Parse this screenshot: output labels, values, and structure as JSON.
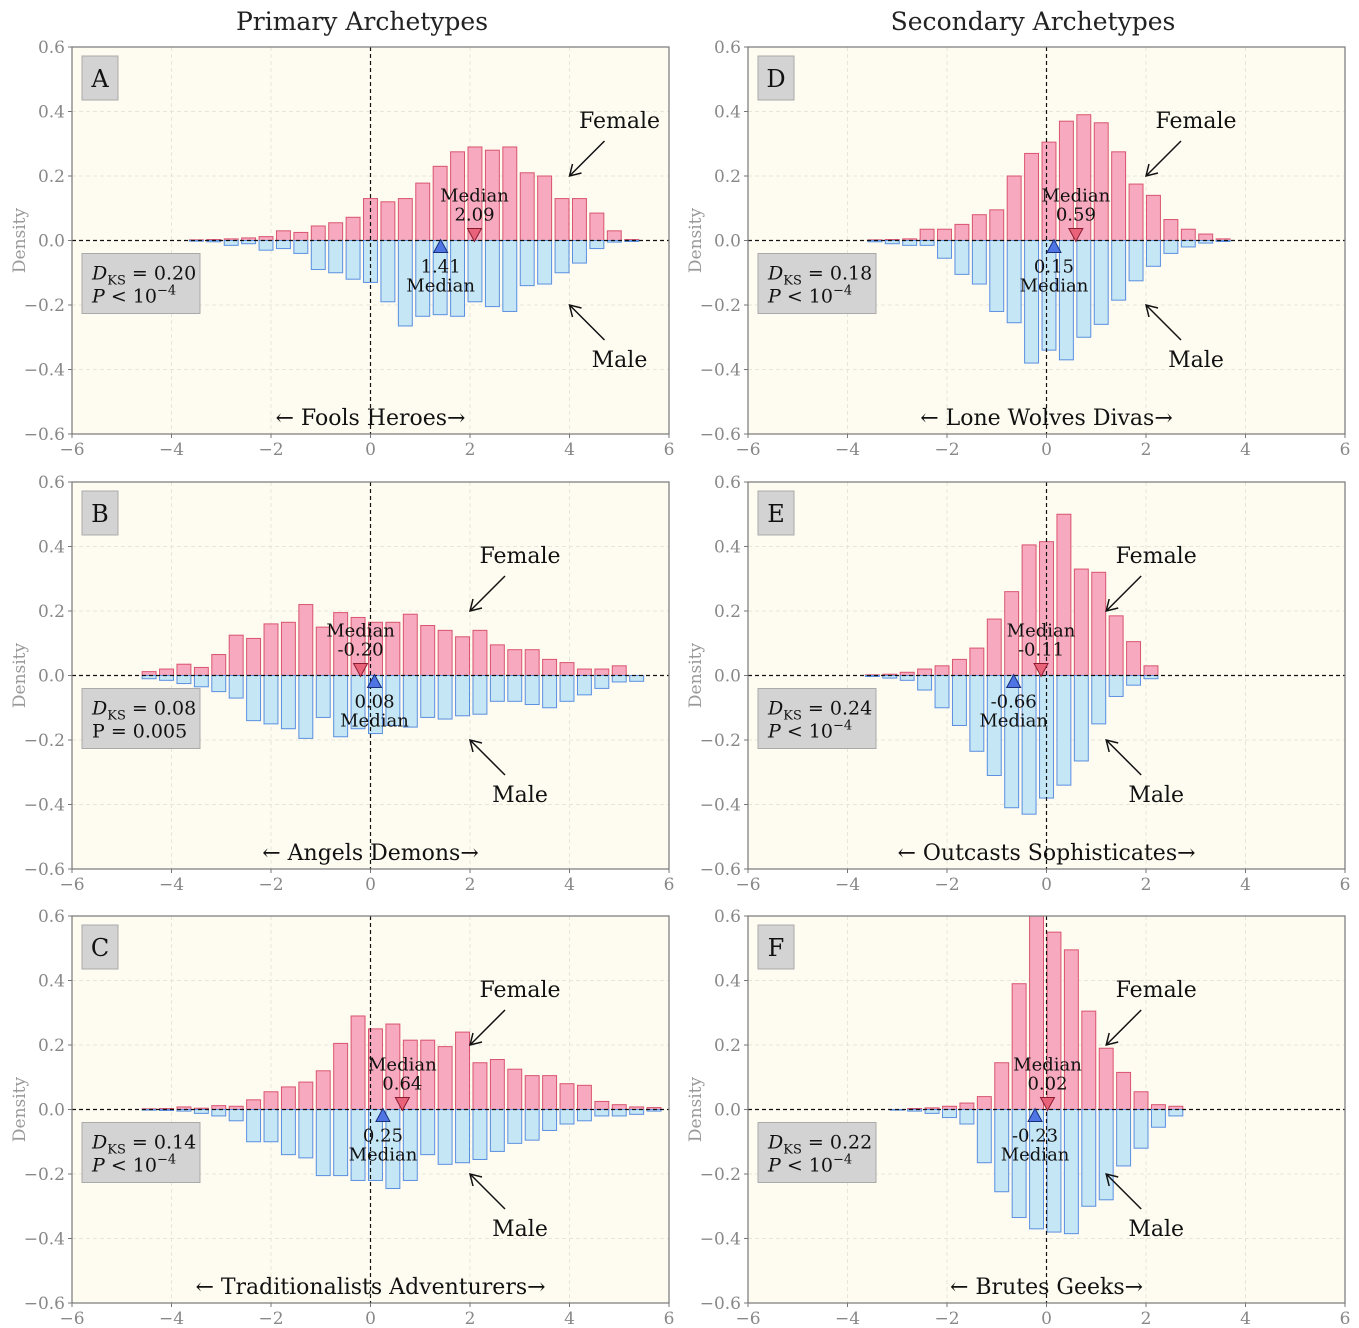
{
  "column_titles": [
    "Primary Archetypes",
    "Secondary Archetypes"
  ],
  "chart_data": [
    {
      "panel": "A",
      "type": "bar",
      "column": 0,
      "row": 0,
      "ylabel": "Density",
      "xlim": [
        -6,
        6
      ],
      "ylim": [
        -0.6,
        0.6
      ],
      "xticks": [
        "−6",
        "−4",
        "−2",
        "0",
        "2",
        "4",
        "6"
      ],
      "yticks": [
        "−0.6",
        "−0.4",
        "−0.2",
        "0.0",
        "0.2",
        "0.4",
        "0.6"
      ],
      "axis_caption": "← Fools  Heroes→",
      "series": [
        {
          "name": "Female",
          "x": [
            -3.5,
            -3.15,
            -2.8,
            -2.45,
            -2.1,
            -1.75,
            -1.4,
            -1.05,
            -0.7,
            -0.35,
            0.0,
            0.35,
            0.7,
            1.05,
            1.4,
            1.75,
            2.1,
            2.45,
            2.8,
            3.15,
            3.5,
            3.85,
            4.2,
            4.55,
            4.9,
            5.25
          ],
          "values": [
            0.002,
            0.003,
            0.005,
            0.008,
            0.012,
            0.03,
            0.025,
            0.045,
            0.055,
            0.072,
            0.13,
            0.12,
            0.13,
            0.178,
            0.23,
            0.275,
            0.29,
            0.28,
            0.29,
            0.21,
            0.2,
            0.13,
            0.13,
            0.085,
            0.03,
            0.003
          ]
        },
        {
          "name": "Male",
          "x": [
            -3.5,
            -3.15,
            -2.8,
            -2.45,
            -2.1,
            -1.75,
            -1.4,
            -1.05,
            -0.7,
            -0.35,
            0.0,
            0.35,
            0.7,
            1.05,
            1.4,
            1.75,
            2.1,
            2.45,
            2.8,
            3.15,
            3.5,
            3.85,
            4.2,
            4.55,
            4.9,
            5.25
          ],
          "values": [
            -0.002,
            -0.004,
            -0.015,
            -0.01,
            -0.03,
            -0.025,
            -0.04,
            -0.09,
            -0.1,
            -0.12,
            -0.13,
            -0.19,
            -0.265,
            -0.235,
            -0.23,
            -0.235,
            -0.19,
            -0.205,
            -0.22,
            -0.14,
            -0.135,
            -0.1,
            -0.07,
            -0.025,
            -0.005,
            -0.003
          ]
        }
      ],
      "female_label": "Female",
      "male_label": "Male",
      "female_median": 2.09,
      "male_median": 1.41,
      "female_median_text": [
        "Median",
        "2.09"
      ],
      "male_median_text": [
        "1.41",
        "Median"
      ],
      "stat_lines": [
        "D_KS = 0.20",
        "P < 10^−4"
      ]
    },
    {
      "panel": "B",
      "type": "bar",
      "column": 0,
      "row": 1,
      "ylabel": "Density",
      "xlim": [
        -6,
        6
      ],
      "ylim": [
        -0.6,
        0.6
      ],
      "xticks": [
        "−6",
        "−4",
        "−2",
        "0",
        "2",
        "4",
        "6"
      ],
      "yticks": [
        "−0.6",
        "−0.4",
        "−0.2",
        "0.0",
        "0.2",
        "0.4",
        "0.6"
      ],
      "axis_caption": "← Angels  Demons→",
      "series": [
        {
          "name": "Female",
          "x": [
            -4.45,
            -4.1,
            -3.75,
            -3.4,
            -3.05,
            -2.7,
            -2.35,
            -2.0,
            -1.65,
            -1.3,
            -0.95,
            -0.6,
            -0.25,
            0.1,
            0.45,
            0.8,
            1.15,
            1.5,
            1.85,
            2.2,
            2.55,
            2.9,
            3.25,
            3.6,
            3.95,
            4.3,
            4.65,
            5.0,
            5.35
          ],
          "values": [
            0.012,
            0.02,
            0.035,
            0.025,
            0.065,
            0.125,
            0.115,
            0.16,
            0.165,
            0.22,
            0.15,
            0.195,
            0.18,
            0.165,
            0.165,
            0.19,
            0.155,
            0.14,
            0.12,
            0.14,
            0.095,
            0.08,
            0.08,
            0.05,
            0.04,
            0.02,
            0.02,
            0.03,
            0.0
          ]
        },
        {
          "name": "Male",
          "x": [
            -4.45,
            -4.1,
            -3.75,
            -3.4,
            -3.05,
            -2.7,
            -2.35,
            -2.0,
            -1.65,
            -1.3,
            -0.95,
            -0.6,
            -0.25,
            0.1,
            0.45,
            0.8,
            1.15,
            1.5,
            1.85,
            2.2,
            2.55,
            2.9,
            3.25,
            3.6,
            3.95,
            4.3,
            4.65,
            5.0,
            5.35
          ],
          "values": [
            -0.01,
            -0.015,
            -0.025,
            -0.035,
            -0.05,
            -0.07,
            -0.14,
            -0.15,
            -0.165,
            -0.195,
            -0.13,
            -0.19,
            -0.165,
            -0.18,
            -0.155,
            -0.16,
            -0.13,
            -0.135,
            -0.125,
            -0.12,
            -0.08,
            -0.08,
            -0.09,
            -0.1,
            -0.08,
            -0.06,
            -0.04,
            -0.02,
            -0.018
          ]
        }
      ],
      "female_label": "Female",
      "male_label": "Male",
      "female_median": -0.2,
      "male_median": 0.08,
      "female_median_text": [
        "Median",
        "-0.20"
      ],
      "male_median_text": [
        "0.08",
        "Median"
      ],
      "stat_lines": [
        "D_KS = 0.08",
        "P = 0.005"
      ]
    },
    {
      "panel": "C",
      "type": "bar",
      "column": 0,
      "row": 2,
      "ylabel": "Density",
      "xlim": [
        -6,
        6
      ],
      "ylim": [
        -0.6,
        0.6
      ],
      "xticks": [
        "−6",
        "−4",
        "−2",
        "0",
        "2",
        "4",
        "6"
      ],
      "yticks": [
        "−0.6",
        "−0.4",
        "−0.2",
        "0.0",
        "0.2",
        "0.4",
        "0.6"
      ],
      "axis_caption": "← Traditionalists  Adventurers→",
      "series": [
        {
          "name": "Female",
          "x": [
            -4.45,
            -4.1,
            -3.75,
            -3.4,
            -3.05,
            -2.7,
            -2.35,
            -2.0,
            -1.65,
            -1.3,
            -0.95,
            -0.6,
            -0.25,
            0.1,
            0.45,
            0.8,
            1.15,
            1.5,
            1.85,
            2.2,
            2.55,
            2.9,
            3.25,
            3.6,
            3.95,
            4.3,
            4.65,
            5.0,
            5.35,
            5.7
          ],
          "values": [
            0.002,
            0.003,
            0.008,
            0.004,
            0.012,
            0.01,
            0.03,
            0.055,
            0.07,
            0.085,
            0.12,
            0.205,
            0.29,
            0.25,
            0.265,
            0.215,
            0.215,
            0.195,
            0.24,
            0.145,
            0.155,
            0.125,
            0.105,
            0.105,
            0.08,
            0.075,
            0.025,
            0.015,
            0.008,
            0.006
          ]
        },
        {
          "name": "Male",
          "x": [
            -4.45,
            -4.1,
            -3.75,
            -3.4,
            -3.05,
            -2.7,
            -2.35,
            -2.0,
            -1.65,
            -1.3,
            -0.95,
            -0.6,
            -0.25,
            0.1,
            0.45,
            0.8,
            1.15,
            1.5,
            1.85,
            2.2,
            2.55,
            2.9,
            3.25,
            3.6,
            3.95,
            4.3,
            4.65,
            5.0,
            5.35,
            5.7
          ],
          "values": [
            -0.002,
            -0.003,
            -0.005,
            -0.012,
            -0.02,
            -0.035,
            -0.1,
            -0.1,
            -0.14,
            -0.15,
            -0.205,
            -0.205,
            -0.22,
            -0.22,
            -0.245,
            -0.22,
            -0.14,
            -0.17,
            -0.165,
            -0.155,
            -0.13,
            -0.105,
            -0.095,
            -0.065,
            -0.045,
            -0.035,
            -0.02,
            -0.02,
            -0.015,
            -0.005
          ]
        }
      ],
      "female_label": "Female",
      "male_label": "Male",
      "female_median": 0.64,
      "male_median": 0.25,
      "female_median_text": [
        "Median",
        "0.64"
      ],
      "male_median_text": [
        "0.25",
        "Median"
      ],
      "stat_lines": [
        "D_KS = 0.14",
        "P < 10^−4"
      ]
    },
    {
      "panel": "D",
      "type": "bar",
      "column": 1,
      "row": 0,
      "ylabel": "Density",
      "xlim": [
        -6,
        6
      ],
      "ylim": [
        -0.6,
        0.6
      ],
      "xticks": [
        "−6",
        "−4",
        "−2",
        "0",
        "2",
        "4",
        "6"
      ],
      "yticks": [
        "−0.6",
        "−0.4",
        "−0.2",
        "0.0",
        "0.2",
        "0.4",
        "0.6"
      ],
      "axis_caption": "← Lone Wolves  Divas→",
      "series": [
        {
          "name": "Female",
          "x": [
            -3.45,
            -3.1,
            -2.75,
            -2.4,
            -2.05,
            -1.7,
            -1.35,
            -1.0,
            -0.65,
            -0.3,
            0.05,
            0.4,
            0.75,
            1.1,
            1.45,
            1.8,
            2.15,
            2.5,
            2.85,
            3.2,
            3.55
          ],
          "values": [
            0.002,
            0.003,
            0.005,
            0.035,
            0.035,
            0.05,
            0.08,
            0.095,
            0.2,
            0.27,
            0.305,
            0.37,
            0.39,
            0.365,
            0.275,
            0.175,
            0.14,
            0.065,
            0.035,
            0.02,
            0.005
          ]
        },
        {
          "name": "Male",
          "x": [
            -3.45,
            -3.1,
            -2.75,
            -2.4,
            -2.05,
            -1.7,
            -1.35,
            -1.0,
            -0.65,
            -0.3,
            0.05,
            0.4,
            0.75,
            1.1,
            1.45,
            1.8,
            2.15,
            2.5,
            2.85,
            3.2,
            3.55
          ],
          "values": [
            -0.004,
            -0.01,
            -0.015,
            -0.015,
            -0.055,
            -0.105,
            -0.135,
            -0.22,
            -0.255,
            -0.38,
            -0.34,
            -0.37,
            -0.3,
            -0.26,
            -0.185,
            -0.125,
            -0.08,
            -0.04,
            -0.02,
            -0.008,
            -0.003
          ]
        }
      ],
      "female_label": "Female",
      "male_label": "Male",
      "female_median": 0.59,
      "male_median": 0.15,
      "female_median_text": [
        "Median",
        "0.59"
      ],
      "male_median_text": [
        "0.15",
        "Median"
      ],
      "stat_lines": [
        "D_KS = 0.18",
        "P < 10^−4"
      ]
    },
    {
      "panel": "E",
      "type": "bar",
      "column": 1,
      "row": 1,
      "ylabel": "Density",
      "xlim": [
        -6,
        6
      ],
      "ylim": [
        -0.6,
        0.6
      ],
      "xticks": [
        "−6",
        "−4",
        "−2",
        "0",
        "2",
        "4",
        "6"
      ],
      "yticks": [
        "−0.6",
        "−0.4",
        "−0.2",
        "0.0",
        "0.2",
        "0.4",
        "0.6"
      ],
      "axis_caption": "← Outcasts  Sophisticates→",
      "series": [
        {
          "name": "Female",
          "x": [
            -3.5,
            -3.15,
            -2.8,
            -2.45,
            -2.1,
            -1.75,
            -1.4,
            -1.05,
            -0.7,
            -0.35,
            0.0,
            0.35,
            0.7,
            1.05,
            1.4,
            1.75,
            2.1
          ],
          "values": [
            0.002,
            0.004,
            0.01,
            0.02,
            0.03,
            0.05,
            0.085,
            0.175,
            0.26,
            0.405,
            0.415,
            0.5,
            0.33,
            0.32,
            0.185,
            0.105,
            0.03
          ]
        },
        {
          "name": "Male",
          "x": [
            -3.5,
            -3.15,
            -2.8,
            -2.45,
            -2.1,
            -1.75,
            -1.4,
            -1.05,
            -0.7,
            -0.35,
            0.0,
            0.35,
            0.7,
            1.05,
            1.4,
            1.75,
            2.1
          ],
          "values": [
            -0.003,
            -0.008,
            -0.015,
            -0.045,
            -0.1,
            -0.155,
            -0.235,
            -0.31,
            -0.41,
            -0.43,
            -0.38,
            -0.34,
            -0.265,
            -0.15,
            -0.065,
            -0.03,
            -0.01
          ]
        }
      ],
      "female_label": "Female",
      "male_label": "Male",
      "female_median": -0.11,
      "male_median": -0.66,
      "female_median_text": [
        "Median",
        "-0.11"
      ],
      "male_median_text": [
        "-0.66",
        "Median"
      ],
      "stat_lines": [
        "D_KS = 0.24",
        "P < 10^−4"
      ]
    },
    {
      "panel": "F",
      "type": "bar",
      "column": 1,
      "row": 2,
      "ylabel": "Density",
      "xlim": [
        -6,
        6
      ],
      "ylim": [
        -0.6,
        0.6
      ],
      "xticks": [
        "−6",
        "−4",
        "−2",
        "0",
        "2",
        "4",
        "6"
      ],
      "yticks": [
        "−0.6",
        "−0.4",
        "−0.2",
        "0.0",
        "0.2",
        "0.4",
        "0.6"
      ],
      "axis_caption": "← Brutes  Geeks→",
      "series": [
        {
          "name": "Female",
          "x": [
            -3.0,
            -2.65,
            -2.3,
            -1.95,
            -1.6,
            -1.25,
            -0.9,
            -0.55,
            -0.2,
            0.15,
            0.5,
            0.85,
            1.2,
            1.55,
            1.9,
            2.25,
            2.6
          ],
          "values": [
            0.0,
            0.003,
            0.005,
            0.01,
            0.02,
            0.04,
            0.145,
            0.39,
            0.6,
            0.55,
            0.495,
            0.305,
            0.19,
            0.115,
            0.055,
            0.015,
            0.01
          ]
        },
        {
          "name": "Male",
          "x": [
            -3.0,
            -2.65,
            -2.3,
            -1.95,
            -1.6,
            -1.25,
            -0.9,
            -0.55,
            -0.2,
            0.15,
            0.5,
            0.85,
            1.2,
            1.55,
            1.9,
            2.25,
            2.6
          ],
          "values": [
            -0.002,
            -0.005,
            -0.012,
            -0.025,
            -0.045,
            -0.165,
            -0.255,
            -0.335,
            -0.37,
            -0.38,
            -0.385,
            -0.3,
            -0.28,
            -0.175,
            -0.12,
            -0.055,
            -0.02
          ]
        }
      ],
      "female_label": "Female",
      "male_label": "Male",
      "female_median": 0.02,
      "male_median": -0.23,
      "female_median_text": [
        "Median",
        "0.02"
      ],
      "male_median_text": [
        "-0.23",
        "Median"
      ],
      "stat_lines": [
        "D_KS = 0.22",
        "P < 10^−4"
      ]
    }
  ],
  "colors": {
    "female_fill": "#f7aabf",
    "female_edge": "#d9546f",
    "male_fill": "#c5e6f5",
    "male_edge": "#5b8fe0",
    "plot_bg": "#fefcf1",
    "label_box": "#d3d3d3",
    "female_marker": "#e8627a",
    "male_marker": "#4f74e3"
  }
}
